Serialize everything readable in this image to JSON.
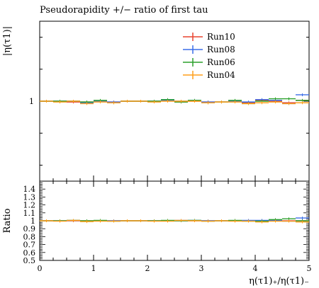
{
  "chart_data": [
    {
      "type": "line",
      "panel": "main",
      "title": "Pseudorapidity +/− ratio of first tau",
      "ylabel": "|η(τ1)|",
      "xlim": [
        0,
        5
      ],
      "ylim": [
        0.5,
        1.5
      ],
      "yticks": [
        {
          "value": 1,
          "label": "1"
        }
      ],
      "grid": false,
      "legend_position": "top-right",
      "x_bin_edges": [
        0,
        0.25,
        0.5,
        0.75,
        1.0,
        1.25,
        1.5,
        1.75,
        2.0,
        2.25,
        2.5,
        2.75,
        3.0,
        3.25,
        3.5,
        3.75,
        4.0,
        4.25,
        4.5,
        4.75,
        5.0
      ],
      "series": [
        {
          "name": "Run10",
          "color": "#e8432f",
          "values": [
            1.0,
            1.0,
            0.995,
            0.995,
            1.0,
            0.995,
            1.0,
            1.0,
            1.0,
            1.005,
            0.995,
            1.0,
            0.995,
            0.995,
            1.0,
            0.99,
            1.005,
            1.0,
            0.99,
            1.005
          ]
        },
        {
          "name": "Run08",
          "color": "#3b6ee8",
          "values": [
            1.0,
            1.0,
            1.0,
            0.99,
            1.0,
            0.995,
            1.0,
            1.0,
            1.0,
            1.005,
            1.0,
            1.005,
            0.995,
            0.995,
            1.0,
            0.995,
            1.01,
            1.005,
            0.985,
            1.04
          ]
        },
        {
          "name": "Run06",
          "color": "#2ca02c",
          "values": [
            1.0,
            1.0,
            1.0,
            0.995,
            1.005,
            0.99,
            1.0,
            1.0,
            1.0,
            1.01,
            0.995,
            1.005,
            0.99,
            0.995,
            1.005,
            0.985,
            1.0,
            1.015,
            1.015,
            1.005
          ]
        },
        {
          "name": "Run04",
          "color": "#ff9f1a",
          "values": [
            1.0,
            0.995,
            1.0,
            0.985,
            0.995,
            0.99,
            1.0,
            1.0,
            0.995,
            1.0,
            1.0,
            1.0,
            0.99,
            0.995,
            0.995,
            0.985,
            0.99,
            0.995,
            0.985,
            0.99
          ]
        }
      ]
    },
    {
      "type": "line",
      "panel": "ratio",
      "ylabel": "Ratio",
      "xlabel": "η(τ1)₊/η(τ1)₋",
      "xlim": [
        0,
        5
      ],
      "ylim": [
        0.5,
        1.5
      ],
      "xticks": [
        "0",
        "1",
        "2",
        "3",
        "4",
        "5"
      ],
      "yticks": [
        "0.5",
        "0.6",
        "0.7",
        "0.8",
        "0.9",
        "1",
        "1.1",
        "1.2",
        "1.3",
        "1.4"
      ],
      "grid": false,
      "x_bin_edges": [
        0,
        0.25,
        0.5,
        0.75,
        1.0,
        1.25,
        1.5,
        1.75,
        2.0,
        2.25,
        2.5,
        2.75,
        3.0,
        3.25,
        3.5,
        3.75,
        4.0,
        4.25,
        4.5,
        4.75,
        5.0
      ],
      "series": [
        {
          "name": "Run10",
          "color": "#e8432f",
          "values": [
            1.0,
            1.0,
            1.0,
            1.0,
            1.0,
            1.0,
            1.0,
            1.0,
            1.0,
            1.0,
            1.0,
            1.0,
            1.0,
            1.0,
            1.0,
            1.0,
            1.0,
            1.0,
            1.0,
            1.0
          ]
        },
        {
          "name": "Run08",
          "color": "#3b6ee8",
          "values": [
            1.0,
            1.0,
            1.005,
            0.995,
            1.0,
            1.0,
            1.0,
            1.0,
            1.0,
            1.0,
            1.005,
            1.005,
            1.0,
            1.0,
            1.0,
            1.005,
            1.005,
            1.005,
            0.995,
            1.035
          ]
        },
        {
          "name": "Run06",
          "color": "#2ca02c",
          "values": [
            1.0,
            1.0,
            1.005,
            1.0,
            1.005,
            0.995,
            1.0,
            1.0,
            1.0,
            1.005,
            1.0,
            1.005,
            0.995,
            1.0,
            1.005,
            0.995,
            0.995,
            1.015,
            1.025,
            1.0
          ]
        },
        {
          "name": "Run04",
          "color": "#ff9f1a",
          "values": [
            1.0,
            0.995,
            1.005,
            0.99,
            0.995,
            0.995,
            1.0,
            1.0,
            0.995,
            0.995,
            1.005,
            1.0,
            0.995,
            1.0,
            0.995,
            0.995,
            0.985,
            0.995,
            0.995,
            0.985
          ]
        }
      ]
    }
  ]
}
